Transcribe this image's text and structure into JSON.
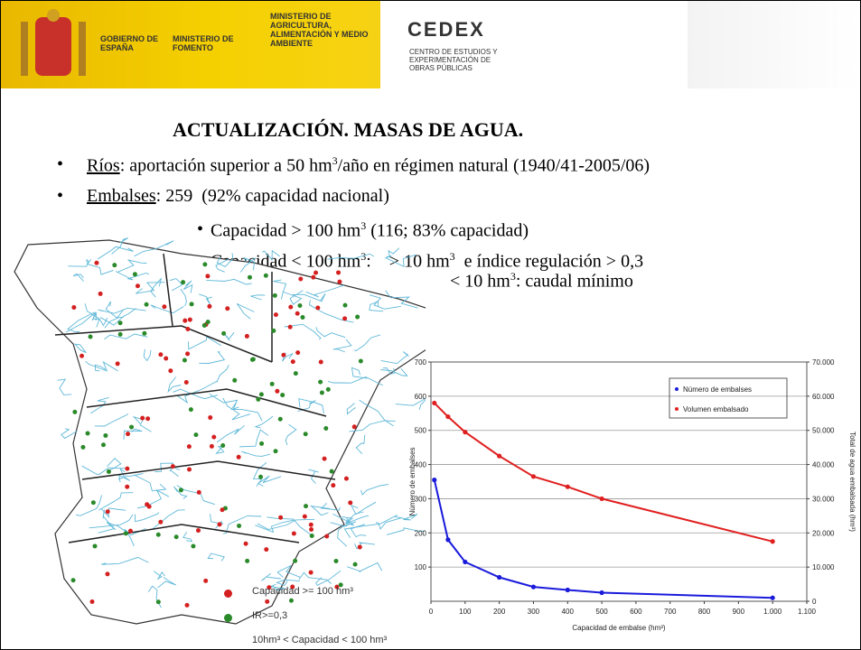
{
  "header": {
    "gobierno": "GOBIERNO DE ESPAÑA",
    "fomento": "MINISTERIO DE FOMENTO",
    "agricultura": "MINISTERIO DE AGRICULTURA, ALIMENTACIÓN Y MEDIO AMBIENTE",
    "cedex": "CEDEX",
    "cedex_sub": "CENTRO DE ESTUDIOS Y EXPERIMENTACIÓN DE OBRAS PÚBLICAS"
  },
  "title": "ACTUALIZACIÓN. MASAS DE AGUA.",
  "lines": [
    [
      {
        "t": "Ríos",
        "u": true
      },
      {
        "t": ": aportación superior a 50 hm"
      },
      {
        "t": "3",
        "sup": true
      },
      {
        "t": "/año en régimen natural (1940/41-2005/06)"
      }
    ],
    [
      {
        "t": "Embalses",
        "u": true
      },
      {
        "t": ": 259  (92% capacidad nacional)"
      }
    ],
    [
      {
        "t": "Capacidad > 100 hm"
      },
      {
        "t": "3",
        "sup": true
      },
      {
        "t": " (116; 83% capacidad)"
      }
    ],
    [
      {
        "t": "Capacidad < 100 hm"
      },
      {
        "t": "3",
        "sup": true
      },
      {
        "t": ":    > 10 hm"
      },
      {
        "t": "3",
        "sup": true
      },
      {
        "t": "  e índice regulación > 0,3"
      }
    ],
    [
      {
        "t": "< 10 hm"
      },
      {
        "t": "3",
        "sup": true
      },
      {
        "t": ": caudal mínimo"
      }
    ]
  ],
  "map_legend": [
    {
      "label": "Capacidad >= 100 hm³",
      "color": "#d42020"
    },
    {
      "label": "IR>=0,3",
      "color": "#2a8a2a"
    },
    {
      "label": "10hm³ < Capacidad < 100 hm³"
    }
  ],
  "chart_data": {
    "type": "line",
    "xlabel": "Capacidad de embalse (hm³)",
    "ylabel": "Número de embalses",
    "y2label": "Total de agua embalsada (hm³)",
    "xlim": [
      0,
      1100
    ],
    "xticks": [
      0,
      100,
      200,
      300,
      400,
      500,
      600,
      700,
      800,
      900,
      {
        "value": 1000,
        "label": "1.000"
      },
      {
        "value": 1100,
        "label": "1.100"
      }
    ],
    "ylim": [
      0,
      700
    ],
    "yticks": [
      100,
      200,
      300,
      400,
      500,
      600,
      700
    ],
    "y2lim": [
      0,
      70000
    ],
    "y2ticks": [
      0,
      {
        "value": 10000,
        "label": "10.000"
      },
      {
        "value": 20000,
        "label": "20.000"
      },
      {
        "value": 30000,
        "label": "30.000"
      },
      {
        "value": 40000,
        "label": "40.000"
      },
      {
        "value": 50000,
        "label": "50.000"
      },
      {
        "value": 60000,
        "label": "60.000"
      },
      {
        "value": 70000,
        "label": "70.000"
      }
    ],
    "grid": true,
    "series": [
      {
        "name": "Número de embalses",
        "color": "#1a1adc",
        "x": [
          10,
          50,
          100,
          200,
          300,
          400,
          500,
          1000
        ],
        "values": [
          355,
          180,
          115,
          70,
          42,
          33,
          25,
          10
        ]
      },
      {
        "name": "Volumen embalsado",
        "color": "#e02020",
        "axis": "y2",
        "x": [
          10,
          50,
          100,
          200,
          300,
          400,
          500,
          1000
        ],
        "values": [
          58000,
          54000,
          49500,
          42500,
          36500,
          33500,
          30000,
          17500
        ]
      }
    ]
  }
}
